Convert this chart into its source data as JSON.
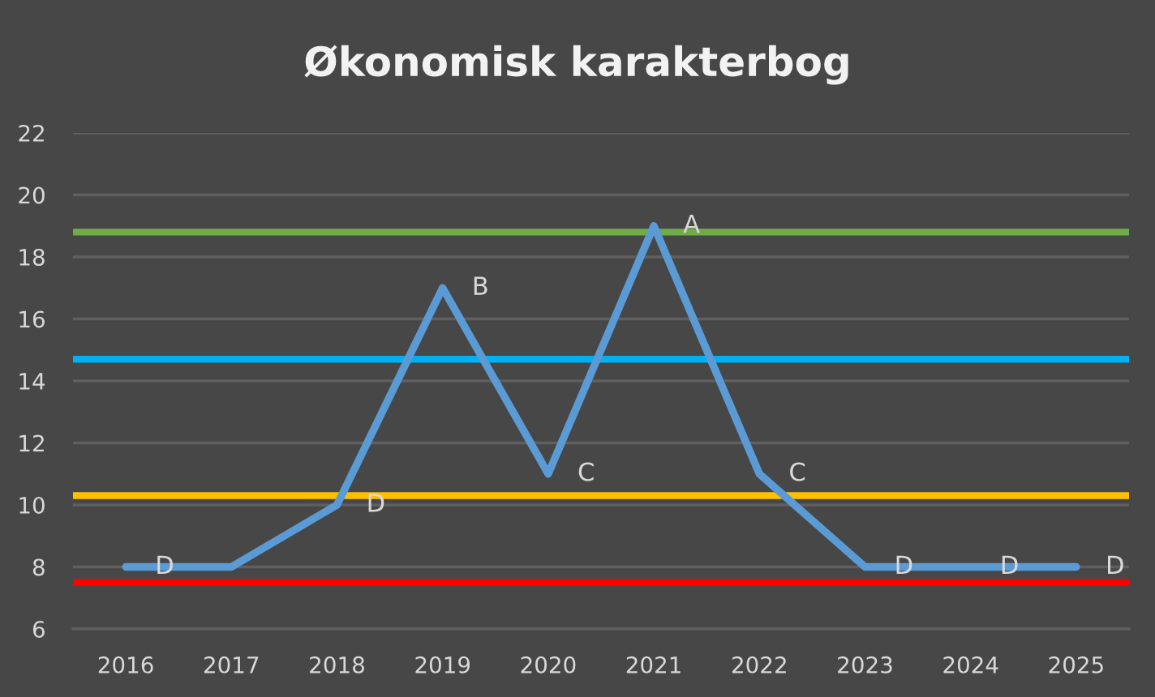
{
  "chart_data": {
    "type": "line",
    "title": "Økonomisk karakterbog",
    "categories": [
      "2016",
      "2017",
      "2018",
      "2019",
      "2020",
      "2021",
      "2022",
      "2023",
      "2024",
      "2025"
    ],
    "series": [
      {
        "color": "#5b9bd5",
        "values": [
          8,
          8,
          10,
          17,
          11,
          19,
          11,
          8,
          8,
          8
        ]
      }
    ],
    "ylim": [
      6,
      22
    ],
    "yticks": [
      6,
      8,
      10,
      12,
      14,
      16,
      18,
      20,
      22
    ],
    "grid": "y",
    "line_style": "solid",
    "ref_lines": [
      {
        "axis": "y",
        "value": 18.8,
        "color": "#70ad47"
      },
      {
        "axis": "y",
        "value": 14.7,
        "color": "#00b0f0"
      },
      {
        "axis": "y",
        "value": 10.3,
        "color": "#ffc000"
      },
      {
        "axis": "y",
        "value": 7.5,
        "color": "#ff0000"
      }
    ],
    "annotations": [
      {
        "text": "D",
        "x": "2016",
        "y": 8
      },
      {
        "text": "D",
        "x": "2018",
        "y": 10
      },
      {
        "text": "B",
        "x": "2019",
        "y": 17
      },
      {
        "text": "C",
        "x": "2020",
        "y": 11
      },
      {
        "text": "A",
        "x": "2021",
        "y": 19
      },
      {
        "text": "C",
        "x": "2022",
        "y": 11
      },
      {
        "text": "D",
        "x": "2023",
        "y": 8
      },
      {
        "text": "D",
        "x": "2024",
        "y": 8
      },
      {
        "text": "D",
        "x": "2025",
        "y": 8
      }
    ]
  }
}
